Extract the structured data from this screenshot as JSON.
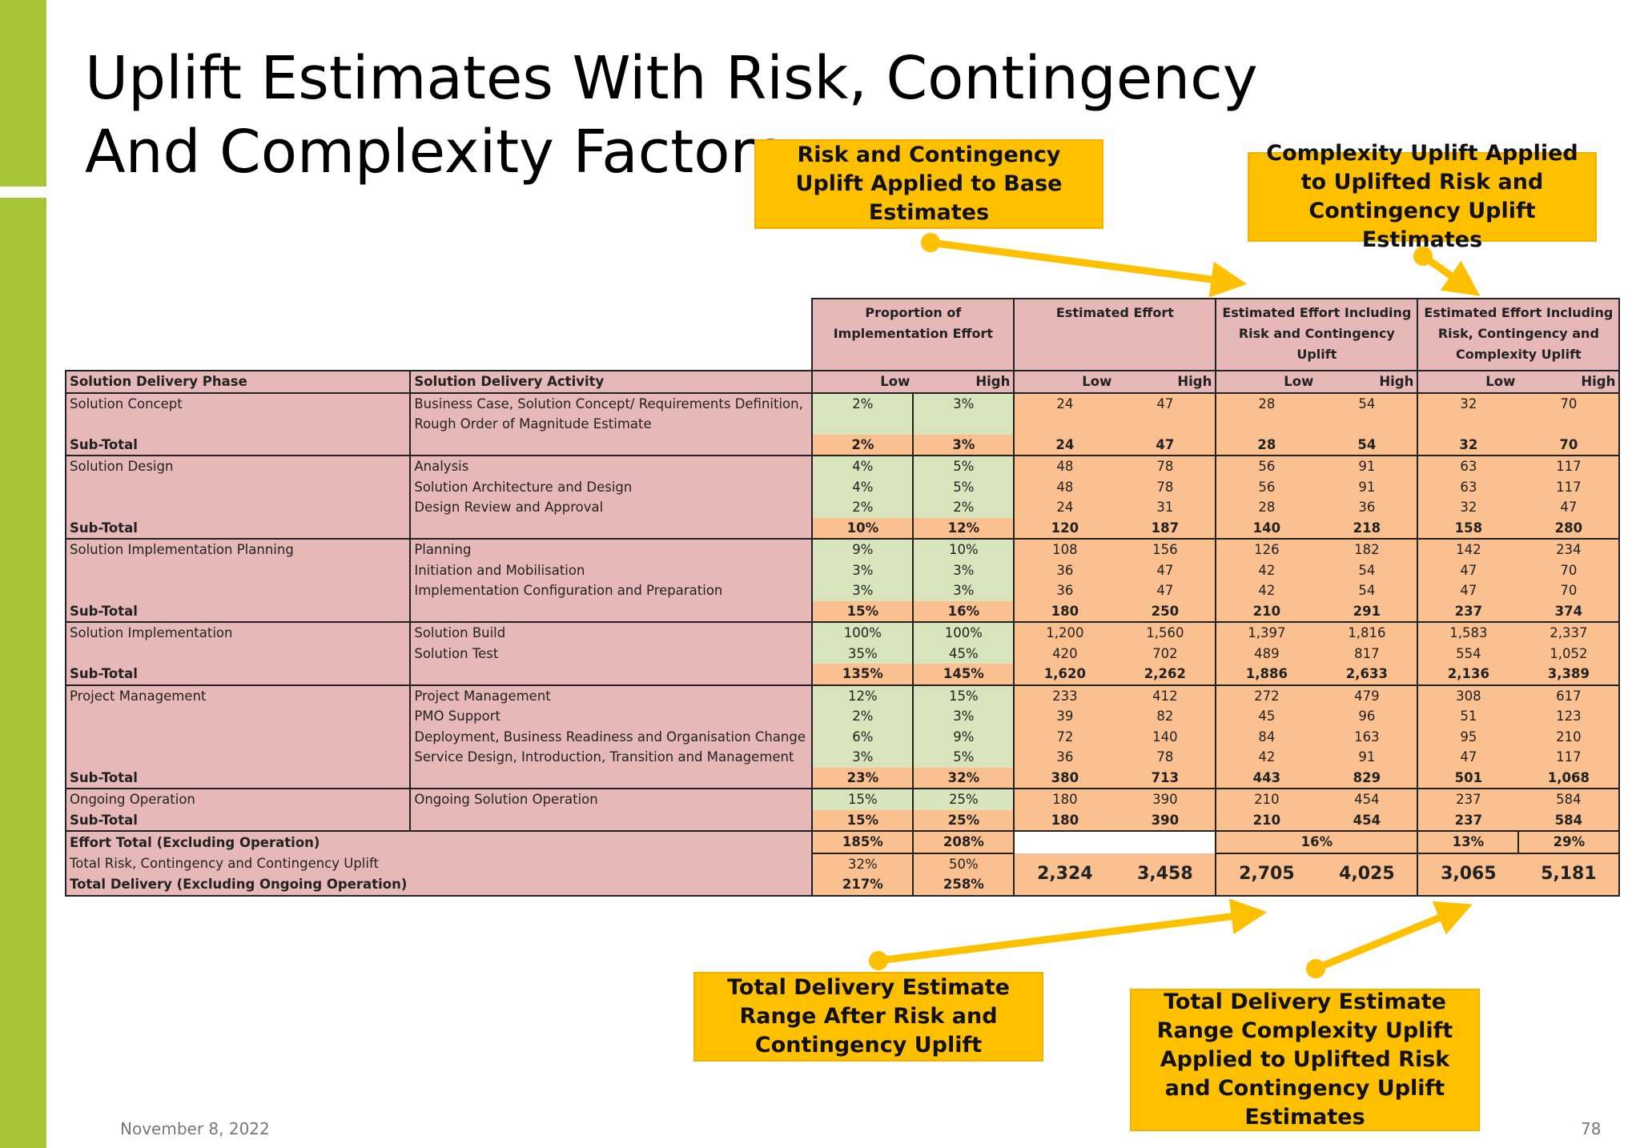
{
  "slide": {
    "title": "Uplift Estimates With Risk, Contingency And Complexity Factors",
    "date": "November 8, 2022",
    "page_number": "78"
  },
  "callouts": {
    "risk_contingency": "Risk and Contingency Uplift Applied to Base Estimates",
    "complexity": "Complexity Uplift Applied to Uplifted Risk and Contingency Uplift Estimates",
    "total_after_risk": "Total Delivery Estimate Range After Risk and Contingency Uplift",
    "total_complexity": "Total Delivery Estimate Range Complexity Uplift Applied to Uplifted Risk and Contingency Uplift Estimates"
  },
  "table": {
    "group_headers": {
      "proportion": "Proportion of Implementation Effort",
      "estimated": "Estimated Effort",
      "risk": "Estimated Effort Including Risk and Contingency Uplift",
      "complexity": "Estimated Effort Including Risk, Contingency and Complexity Uplift"
    },
    "columns": {
      "phase": "Solution Delivery Phase",
      "activity": "Solution Delivery Activity",
      "low": "Low",
      "high": "High"
    },
    "rows": [
      {
        "phase": "Solution Concept",
        "activity": "Business Case, Solution Concept/ Requirements Definition,",
        "pl": "2%",
        "ph": "3%",
        "el": "24",
        "eh": "47",
        "rl": "28",
        "rh": "54",
        "cl": "32",
        "ch": "70"
      },
      {
        "phase": "",
        "activity": "Rough Order of Magnitude Estimate",
        "pl": "",
        "ph": "",
        "el": "",
        "eh": "",
        "rl": "",
        "rh": "",
        "cl": "",
        "ch": ""
      },
      {
        "phase": "Sub-Total",
        "activity": "",
        "pl": "2%",
        "ph": "3%",
        "el": "24",
        "eh": "47",
        "rl": "28",
        "rh": "54",
        "cl": "32",
        "ch": "70"
      },
      {
        "phase": "Solution Design",
        "activity": "Analysis",
        "pl": "4%",
        "ph": "5%",
        "el": "48",
        "eh": "78",
        "rl": "56",
        "rh": "91",
        "cl": "63",
        "ch": "117"
      },
      {
        "phase": "",
        "activity": "Solution Architecture and Design",
        "pl": "4%",
        "ph": "5%",
        "el": "48",
        "eh": "78",
        "rl": "56",
        "rh": "91",
        "cl": "63",
        "ch": "117"
      },
      {
        "phase": "",
        "activity": "Design Review and Approval",
        "pl": "2%",
        "ph": "2%",
        "el": "24",
        "eh": "31",
        "rl": "28",
        "rh": "36",
        "cl": "32",
        "ch": "47"
      },
      {
        "phase": "Sub-Total",
        "activity": "",
        "pl": "10%",
        "ph": "12%",
        "el": "120",
        "eh": "187",
        "rl": "140",
        "rh": "218",
        "cl": "158",
        "ch": "280"
      },
      {
        "phase": "Solution Implementation Planning",
        "activity": "Planning",
        "pl": "9%",
        "ph": "10%",
        "el": "108",
        "eh": "156",
        "rl": "126",
        "rh": "182",
        "cl": "142",
        "ch": "234"
      },
      {
        "phase": "",
        "activity": "Initiation and Mobilisation",
        "pl": "3%",
        "ph": "3%",
        "el": "36",
        "eh": "47",
        "rl": "42",
        "rh": "54",
        "cl": "47",
        "ch": "70"
      },
      {
        "phase": "",
        "activity": "Implementation Configuration and Preparation",
        "pl": "3%",
        "ph": "3%",
        "el": "36",
        "eh": "47",
        "rl": "42",
        "rh": "54",
        "cl": "47",
        "ch": "70"
      },
      {
        "phase": "Sub-Total",
        "activity": "",
        "pl": "15%",
        "ph": "16%",
        "el": "180",
        "eh": "250",
        "rl": "210",
        "rh": "291",
        "cl": "237",
        "ch": "374"
      },
      {
        "phase": "Solution Implementation",
        "activity": "Solution Build",
        "pl": "100%",
        "ph": "100%",
        "el": "1,200",
        "eh": "1,560",
        "rl": "1,397",
        "rh": "1,816",
        "cl": "1,583",
        "ch": "2,337"
      },
      {
        "phase": "",
        "activity": "Solution Test",
        "pl": "35%",
        "ph": "45%",
        "el": "420",
        "eh": "702",
        "rl": "489",
        "rh": "817",
        "cl": "554",
        "ch": "1,052"
      },
      {
        "phase": "Sub-Total",
        "activity": "",
        "pl": "135%",
        "ph": "145%",
        "el": "1,620",
        "eh": "2,262",
        "rl": "1,886",
        "rh": "2,633",
        "cl": "2,136",
        "ch": "3,389"
      },
      {
        "phase": "Project Management",
        "activity": "Project Management",
        "pl": "12%",
        "ph": "15%",
        "el": "233",
        "eh": "412",
        "rl": "272",
        "rh": "479",
        "cl": "308",
        "ch": "617"
      },
      {
        "phase": "",
        "activity": "PMO Support",
        "pl": "2%",
        "ph": "3%",
        "el": "39",
        "eh": "82",
        "rl": "45",
        "rh": "96",
        "cl": "51",
        "ch": "123"
      },
      {
        "phase": "",
        "activity": "Deployment, Business Readiness and Organisation Change",
        "pl": "6%",
        "ph": "9%",
        "el": "72",
        "eh": "140",
        "rl": "84",
        "rh": "163",
        "cl": "95",
        "ch": "210"
      },
      {
        "phase": "",
        "activity": "Service Design, Introduction, Transition and Management",
        "pl": "3%",
        "ph": "5%",
        "el": "36",
        "eh": "78",
        "rl": "42",
        "rh": "91",
        "cl": "47",
        "ch": "117"
      },
      {
        "phase": "Sub-Total",
        "activity": "",
        "pl": "23%",
        "ph": "32%",
        "el": "380",
        "eh": "713",
        "rl": "443",
        "rh": "829",
        "cl": "501",
        "ch": "1,068"
      },
      {
        "phase": "Ongoing Operation",
        "activity": "Ongoing Solution Operation",
        "pl": "15%",
        "ph": "25%",
        "el": "180",
        "eh": "390",
        "rl": "210",
        "rh": "454",
        "cl": "237",
        "ch": "584"
      },
      {
        "phase": "Sub-Total",
        "activity": "",
        "pl": "15%",
        "ph": "25%",
        "el": "180",
        "eh": "390",
        "rl": "210",
        "rh": "454",
        "cl": "237",
        "ch": "584"
      }
    ],
    "effort_total": {
      "label": "Effort Total (Excluding Operation)",
      "pl": "185%",
      "ph": "208%",
      "risk_pct": "16%",
      "cl": "13%",
      "ch": "29%"
    },
    "total_risk": {
      "label": "Total Risk, Contingency and Contingency Uplift",
      "pl": "32%",
      "ph": "50%"
    },
    "total_delivery": {
      "label": "Total Delivery (Excluding Ongoing Operation)",
      "pl": "217%",
      "ph": "258%"
    },
    "grand_totals": {
      "el": "2,324",
      "eh": "3,458",
      "rl": "2,705",
      "rh": "4,025",
      "cl": "3,065",
      "ch": "5,181"
    }
  }
}
